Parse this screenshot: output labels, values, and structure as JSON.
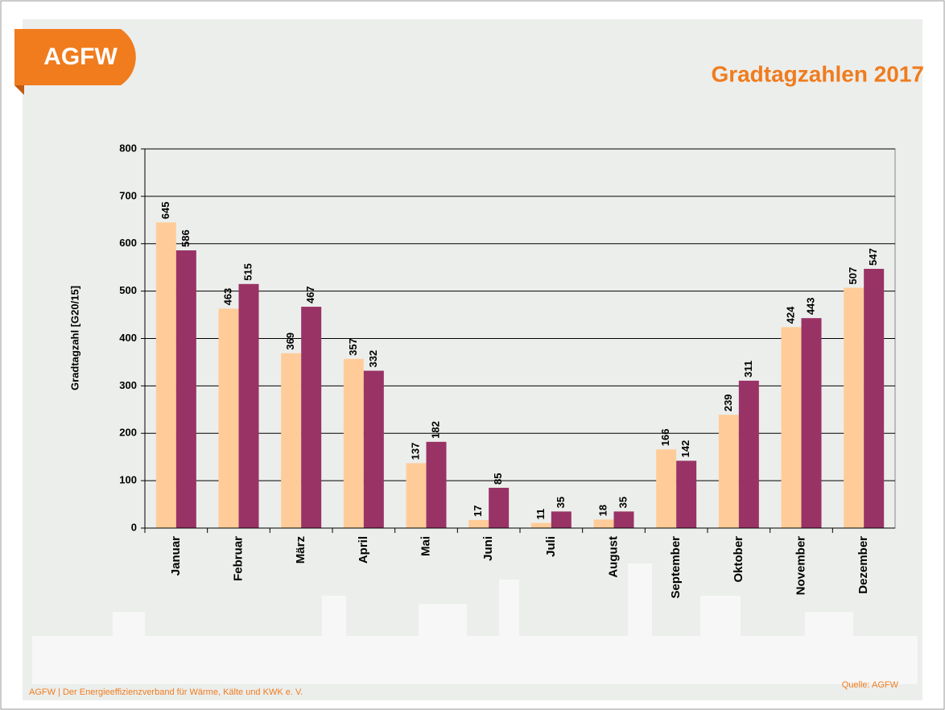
{
  "logo": "AGFW",
  "footer": "AGFW | Der Energieeffizienzverband für Wärme, Kälte und KWK e. V.",
  "source": "Quelle: AGFW",
  "chart_data": {
    "type": "bar",
    "title": "Gradtagzahlen 2017",
    "y_label": "Gradtagzahl [G20/15]",
    "categories": [
      "Januar",
      "Februar",
      "März",
      "April",
      "Mai",
      "Juni",
      "Juli",
      "August",
      "September",
      "Oktober",
      "November",
      "Dezember"
    ],
    "series": [
      {
        "color": "#ffcc99",
        "values": [
          645,
          463,
          369,
          357,
          137,
          17,
          11,
          18,
          166,
          239,
          424,
          507
        ]
      },
      {
        "color": "#993366",
        "values": [
          586,
          515,
          467,
          332,
          182,
          85,
          35,
          35,
          142,
          311,
          443,
          547
        ]
      }
    ],
    "ylim": [
      0,
      800
    ],
    "yticks": [
      0,
      100,
      200,
      300,
      400,
      500,
      600,
      700,
      800
    ],
    "grid": true
  }
}
